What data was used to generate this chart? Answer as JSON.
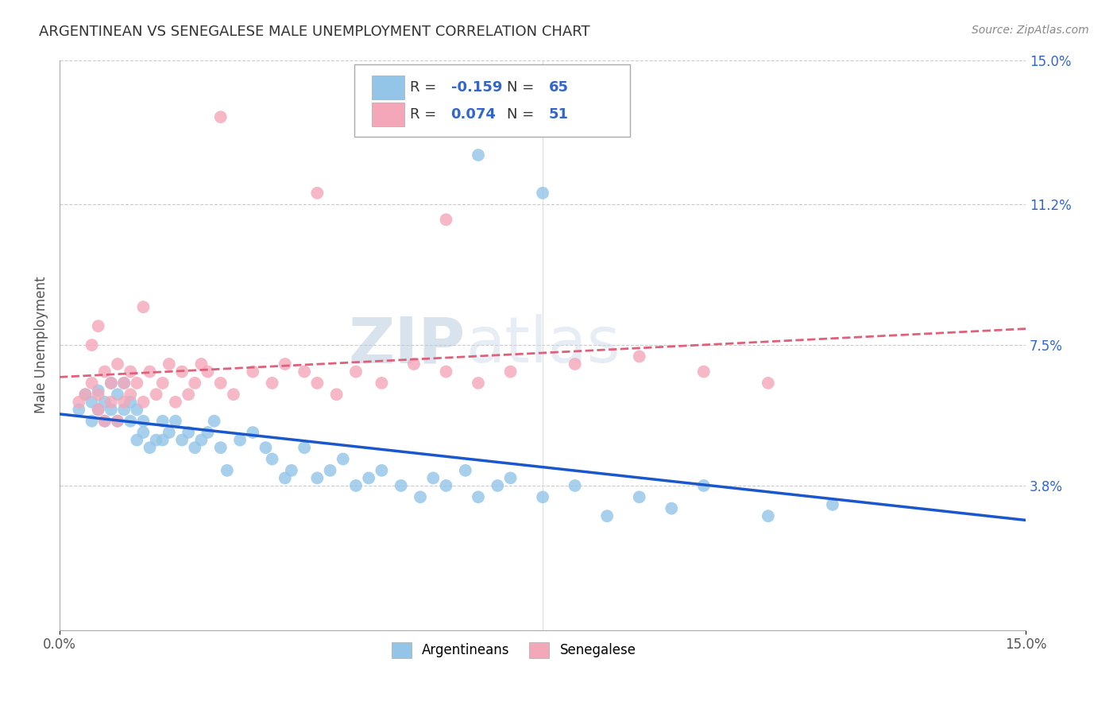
{
  "title": "ARGENTINEAN VS SENEGALESE MALE UNEMPLOYMENT CORRELATION CHART",
  "source": "Source: ZipAtlas.com",
  "ylabel": "Male Unemployment",
  "legend_labels": [
    "Argentineans",
    "Senegalese"
  ],
  "legend_r": [
    -0.159,
    0.074
  ],
  "legend_n": [
    65,
    51
  ],
  "blue_color": "#92C5E8",
  "pink_color": "#F4A7B9",
  "blue_line_color": "#1A56CC",
  "pink_line_color": "#E0607A",
  "xlim": [
    0.0,
    0.15
  ],
  "ylim": [
    0.0,
    0.15
  ],
  "yticks": [
    0.038,
    0.075,
    0.112,
    0.15
  ],
  "ytick_labels": [
    "3.8%",
    "7.5%",
    "11.2%",
    "15.0%"
  ],
  "watermark_zip": "ZIP",
  "watermark_atlas": "atlas",
  "blue_x": [
    0.003,
    0.004,
    0.005,
    0.005,
    0.006,
    0.006,
    0.007,
    0.007,
    0.008,
    0.008,
    0.009,
    0.009,
    0.01,
    0.01,
    0.011,
    0.011,
    0.012,
    0.012,
    0.013,
    0.013,
    0.014,
    0.015,
    0.016,
    0.016,
    0.017,
    0.018,
    0.019,
    0.02,
    0.021,
    0.022,
    0.023,
    0.024,
    0.025,
    0.026,
    0.028,
    0.03,
    0.032,
    0.033,
    0.035,
    0.036,
    0.038,
    0.04,
    0.042,
    0.044,
    0.046,
    0.048,
    0.05,
    0.053,
    0.056,
    0.058,
    0.06,
    0.063,
    0.065,
    0.068,
    0.07,
    0.075,
    0.08,
    0.085,
    0.09,
    0.095,
    0.1,
    0.11,
    0.12,
    0.065,
    0.075
  ],
  "blue_y": [
    0.058,
    0.062,
    0.06,
    0.055,
    0.058,
    0.063,
    0.055,
    0.06,
    0.058,
    0.065,
    0.055,
    0.062,
    0.058,
    0.065,
    0.055,
    0.06,
    0.058,
    0.05,
    0.052,
    0.055,
    0.048,
    0.05,
    0.055,
    0.05,
    0.052,
    0.055,
    0.05,
    0.052,
    0.048,
    0.05,
    0.052,
    0.055,
    0.048,
    0.042,
    0.05,
    0.052,
    0.048,
    0.045,
    0.04,
    0.042,
    0.048,
    0.04,
    0.042,
    0.045,
    0.038,
    0.04,
    0.042,
    0.038,
    0.035,
    0.04,
    0.038,
    0.042,
    0.035,
    0.038,
    0.04,
    0.035,
    0.038,
    0.03,
    0.035,
    0.032,
    0.038,
    0.03,
    0.033,
    0.125,
    0.115
  ],
  "pink_x": [
    0.003,
    0.004,
    0.005,
    0.006,
    0.006,
    0.007,
    0.007,
    0.008,
    0.008,
    0.009,
    0.009,
    0.01,
    0.01,
    0.011,
    0.011,
    0.012,
    0.013,
    0.014,
    0.015,
    0.016,
    0.017,
    0.018,
    0.019,
    0.02,
    0.021,
    0.022,
    0.023,
    0.025,
    0.027,
    0.03,
    0.033,
    0.035,
    0.038,
    0.04,
    0.043,
    0.046,
    0.05,
    0.055,
    0.06,
    0.065,
    0.07,
    0.08,
    0.09,
    0.1,
    0.11,
    0.025,
    0.04,
    0.06,
    0.005,
    0.006,
    0.013
  ],
  "pink_y": [
    0.06,
    0.062,
    0.065,
    0.058,
    0.062,
    0.055,
    0.068,
    0.06,
    0.065,
    0.055,
    0.07,
    0.065,
    0.06,
    0.068,
    0.062,
    0.065,
    0.06,
    0.068,
    0.062,
    0.065,
    0.07,
    0.06,
    0.068,
    0.062,
    0.065,
    0.07,
    0.068,
    0.065,
    0.062,
    0.068,
    0.065,
    0.07,
    0.068,
    0.065,
    0.062,
    0.068,
    0.065,
    0.07,
    0.068,
    0.065,
    0.068,
    0.07,
    0.072,
    0.068,
    0.065,
    0.135,
    0.115,
    0.108,
    0.075,
    0.08,
    0.085
  ]
}
